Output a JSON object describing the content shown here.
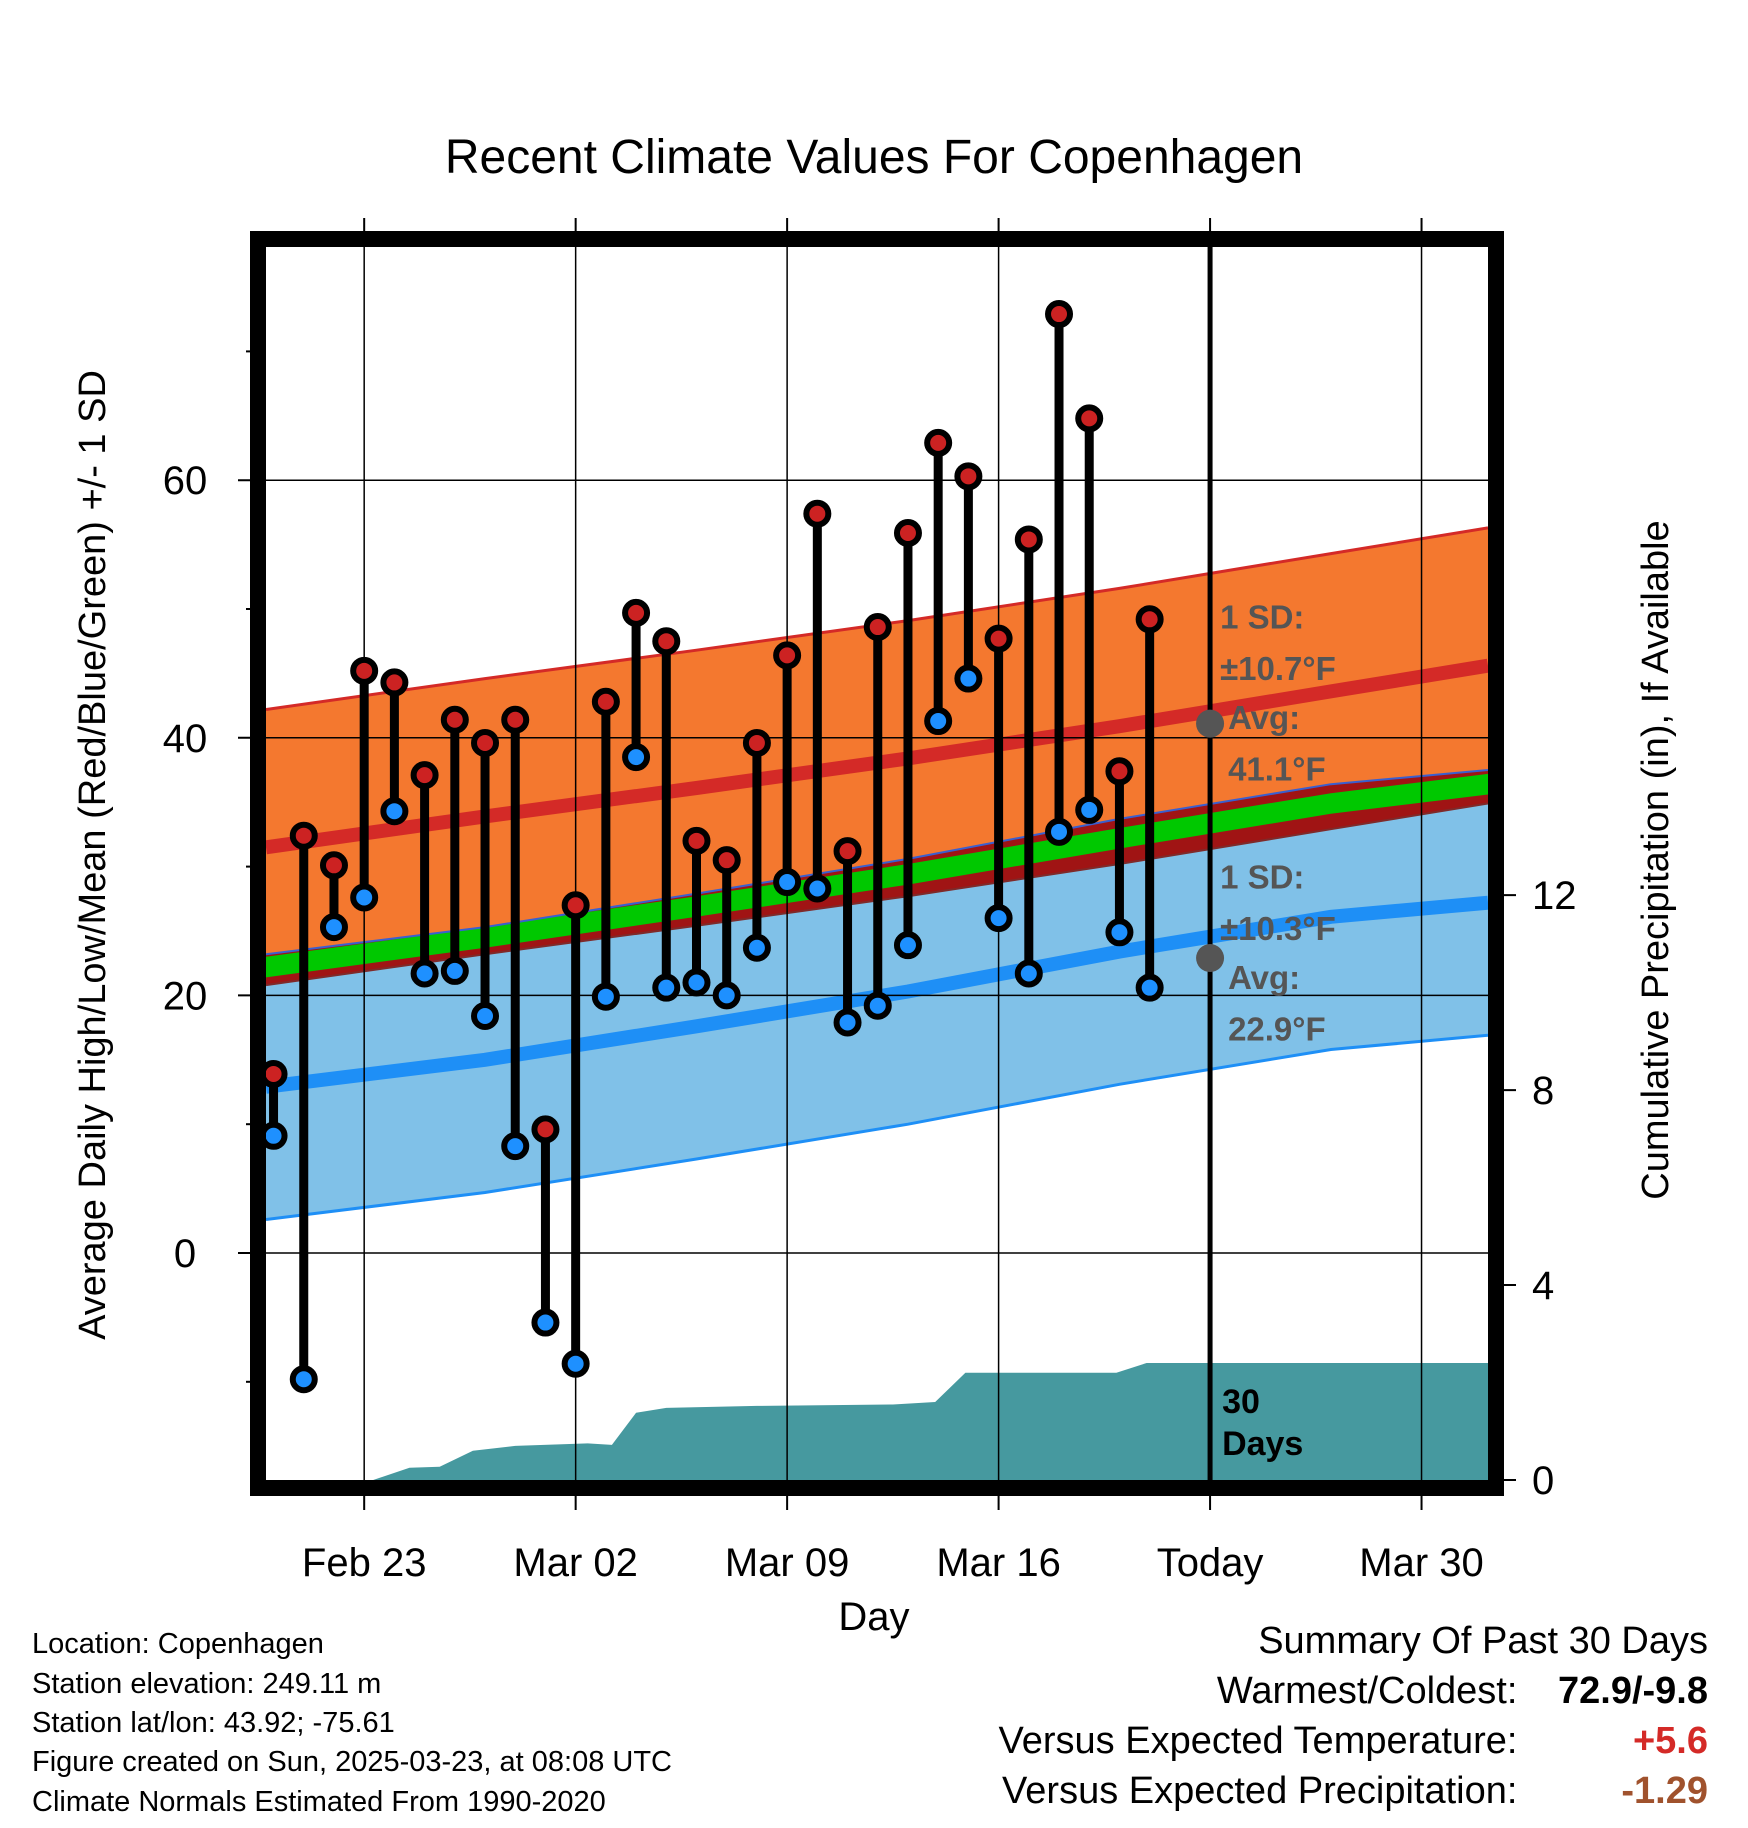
{
  "chart_data": {
    "type": "line",
    "title": "Recent Climate Values For Copenhagen",
    "xlabel": "Day",
    "ylabel": "Average Daily High/Low/Mean (Red/Blue/Green) +/- 1 SD",
    "ylabel_right": "Cumulative Precipitation (in), If Available",
    "x_tick_labels": [
      "Feb 23",
      "Mar 02",
      "Mar 09",
      "Mar 16",
      "Today",
      "Mar 30"
    ],
    "x_tick_days": [
      2,
      9,
      16,
      23,
      30,
      37
    ],
    "x_range": [
      -1.25,
      39.2
    ],
    "ylim": [
      -17,
      78
    ],
    "y_ticks": [
      0,
      20,
      40,
      60
    ],
    "y2lim": [
      0,
      25.3
    ],
    "y2_ticks": [
      0,
      4,
      8,
      12
    ],
    "grid": true,
    "today_day": 30,
    "daily": [
      {
        "day": -1,
        "high": 13.9,
        "low": 9.1
      },
      {
        "day": 0,
        "high": 32.4,
        "low": -9.8
      },
      {
        "day": 1,
        "high": 30.1,
        "low": 25.3
      },
      {
        "day": 2,
        "high": 45.2,
        "low": 27.6
      },
      {
        "day": 3,
        "high": 44.3,
        "low": 34.3
      },
      {
        "day": 4,
        "high": 37.1,
        "low": 21.7
      },
      {
        "day": 5,
        "high": 41.4,
        "low": 21.9
      },
      {
        "day": 6,
        "high": 39.6,
        "low": 18.4
      },
      {
        "day": 7,
        "high": 41.4,
        "low": 8.3
      },
      {
        "day": 8,
        "high": 9.6,
        "low": -5.4
      },
      {
        "day": 9,
        "high": 27.0,
        "low": -8.6
      },
      {
        "day": 10,
        "high": 42.8,
        "low": 19.9
      },
      {
        "day": 11,
        "high": 49.7,
        "low": 38.5
      },
      {
        "day": 12,
        "high": 47.5,
        "low": 20.6
      },
      {
        "day": 13,
        "high": 32.0,
        "low": 21.0
      },
      {
        "day": 14,
        "high": 30.5,
        "low": 20.0
      },
      {
        "day": 15,
        "high": 39.6,
        "low": 23.7
      },
      {
        "day": 16,
        "high": 46.4,
        "low": 28.8
      },
      {
        "day": 17,
        "high": 57.4,
        "low": 28.3
      },
      {
        "day": 18,
        "high": 31.2,
        "low": 17.9
      },
      {
        "day": 19,
        "high": 48.6,
        "low": 19.2
      },
      {
        "day": 20,
        "high": 55.9,
        "low": 23.9
      },
      {
        "day": 21,
        "high": 62.9,
        "low": 41.3
      },
      {
        "day": 22,
        "high": 60.3,
        "low": 44.6
      },
      {
        "day": 23,
        "high": 47.7,
        "low": 26.0
      },
      {
        "day": 24,
        "high": 55.4,
        "low": 21.7
      },
      {
        "day": 25,
        "high": 72.9,
        "low": 32.7
      },
      {
        "day": 26,
        "high": 64.8,
        "low": 34.4
      },
      {
        "day": 27,
        "high": 37.4,
        "low": 24.9
      },
      {
        "day": 28,
        "high": 49.2,
        "low": 20.6
      }
    ],
    "normals": {
      "days": [
        -1.25,
        6,
        13,
        20,
        27,
        34,
        39.2
      ],
      "high_mean": [
        31.5,
        33.9,
        36.1,
        38.4,
        40.9,
        43.6,
        45.6
      ],
      "high_sd": 10.7,
      "low_mean": [
        12.9,
        15.0,
        17.6,
        20.3,
        23.4,
        26.1,
        27.2
      ],
      "low_sd": 10.3,
      "mean_mean": [
        22.2,
        24.5,
        26.9,
        29.4,
        32.2,
        34.9,
        36.4
      ]
    },
    "precip": {
      "days": [
        -1.25,
        0.5,
        2.3,
        3.5,
        4.5,
        5.6,
        7,
        9.4,
        10.2,
        11,
        12,
        15,
        19.5,
        20.9,
        21.9,
        26.9,
        27.9,
        39.2
      ],
      "cumulative": [
        0,
        0,
        0,
        0.25,
        0.27,
        0.6,
        0.7,
        0.75,
        0.72,
        1.38,
        1.48,
        1.52,
        1.55,
        1.6,
        2.2,
        2.2,
        2.4,
        2.4
      ]
    },
    "annotations": {
      "high_sd_label": "1 SD:",
      "high_sd_value": "±10.7°F",
      "high_avg_label": "Avg:",
      "high_avg_value": "41.1°F",
      "low_sd_label": "1 SD:",
      "low_sd_value": "±10.3°F",
      "low_avg_label": "Avg:",
      "low_avg_value": "22.9°F",
      "precip_days_line1": "30",
      "precip_days_line2": "Days"
    },
    "colors": {
      "high_band": "#f4782f",
      "high_line": "#d42a27",
      "low_band": "#80c1e8",
      "low_line": "#1e8ff6",
      "mean_band": "#00c800",
      "overlap_band": "#a01414",
      "precip": "#46999f",
      "high_marker": "#cc2222",
      "low_marker": "#1e90ff"
    }
  },
  "info": {
    "location": "Location: Copenhagen",
    "elevation": "Station elevation: 249.11 m",
    "latlon": "Station lat/lon: 43.92; -75.61",
    "created": "Figure created on Sun, 2025-03-23, at 08:08 UTC",
    "normals": "Climate Normals Estimated From 1990-2020"
  },
  "summary": {
    "title": "Summary Of Past 30 Days",
    "warm_cold_label": "Warmest/Coldest:",
    "warm_cold_value": "72.9/-9.8",
    "temp_label": "Versus Expected Temperature:",
    "temp_value": "+5.6",
    "temp_color": "#d42a27",
    "precip_label": "Versus Expected Precipitation:",
    "precip_value": "-1.29",
    "precip_color": "#a0522d"
  }
}
